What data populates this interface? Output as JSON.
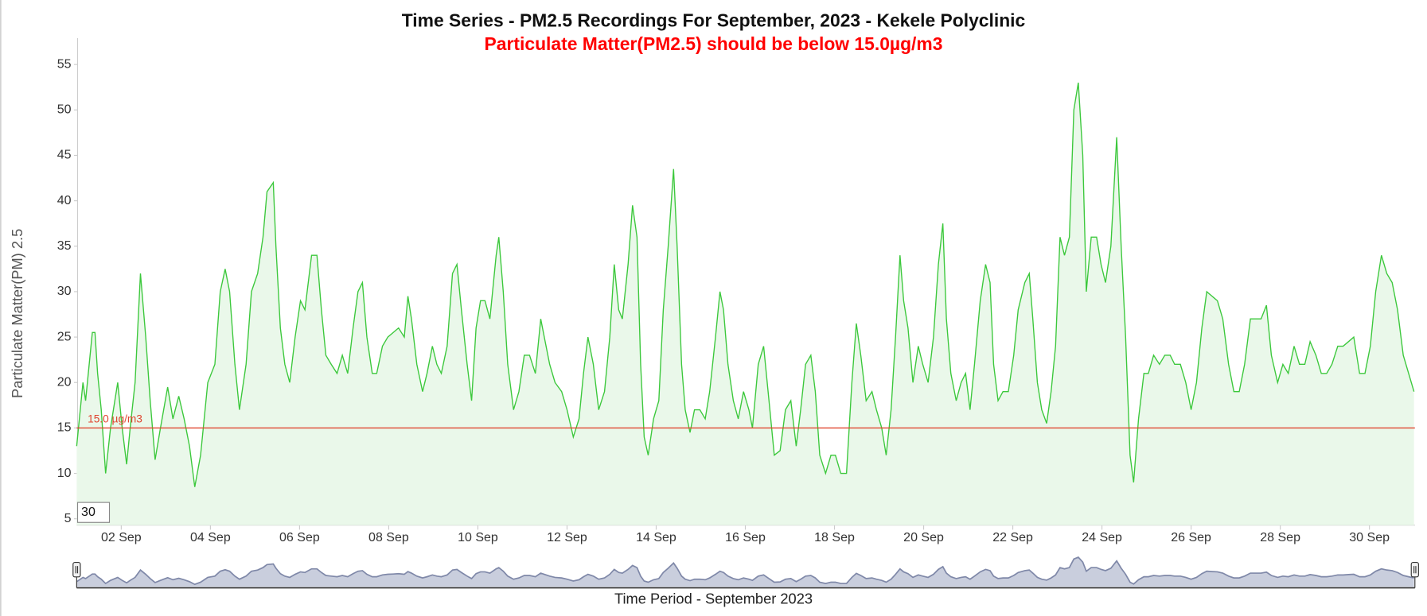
{
  "chart_data": {
    "type": "area",
    "title": "Time Series - PM2.5 Recordings For September, 2023 - Kekele Polyclinic",
    "subtitle": "Particulate Matter(PM2.5) should be below 15.0µg/m3",
    "y_label": "Particulate Matter(PM) 2.5",
    "x_label": "Time Period - September 2023",
    "range_input": "30",
    "color": "#3cc83c",
    "fill_color": "#eaf8ea",
    "navigator_color": "#7f88a8",
    "navigator_fill": "#c9cedd",
    "threshold": {
      "value": 15,
      "label": "15.0 µg/m3",
      "color": "#e0452f"
    },
    "xlim": [
      1,
      31
    ],
    "ylim": [
      4.3,
      57.9
    ],
    "yticks": [
      5,
      10,
      15,
      20,
      25,
      30,
      35,
      40,
      45,
      50,
      55
    ],
    "xticks": [
      {
        "value": 2,
        "label": "02 Sep"
      },
      {
        "value": 4,
        "label": "04 Sep"
      },
      {
        "value": 6,
        "label": "06 Sep"
      },
      {
        "value": 8,
        "label": "08 Sep"
      },
      {
        "value": 10,
        "label": "10 Sep"
      },
      {
        "value": 12,
        "label": "12 Sep"
      },
      {
        "value": 14,
        "label": "14 Sep"
      },
      {
        "value": 16,
        "label": "16 Sep"
      },
      {
        "value": 18,
        "label": "18 Sep"
      },
      {
        "value": 20,
        "label": "20 Sep"
      },
      {
        "value": 22,
        "label": "22 Sep"
      },
      {
        "value": 24,
        "label": "24 Sep"
      },
      {
        "value": 26,
        "label": "26 Sep"
      },
      {
        "value": 28,
        "label": "28 Sep"
      },
      {
        "value": 30,
        "label": "30 Sep"
      }
    ],
    "x": [
      1.0,
      1.14,
      1.2,
      1.35,
      1.41,
      1.47,
      1.55,
      1.65,
      1.76,
      1.92,
      2.02,
      2.12,
      2.2,
      2.31,
      2.43,
      2.55,
      2.65,
      2.76,
      2.88,
      3.04,
      3.16,
      3.29,
      3.41,
      3.53,
      3.65,
      3.78,
      3.94,
      4.1,
      4.22,
      4.33,
      4.43,
      4.55,
      4.65,
      4.8,
      4.92,
      5.06,
      5.18,
      5.27,
      5.41,
      5.47,
      5.57,
      5.67,
      5.78,
      5.9,
      6.02,
      6.12,
      6.27,
      6.39,
      6.49,
      6.59,
      6.71,
      6.84,
      6.96,
      7.08,
      7.2,
      7.31,
      7.41,
      7.51,
      7.63,
      7.73,
      7.86,
      7.98,
      8.1,
      8.22,
      8.35,
      8.43,
      8.51,
      8.63,
      8.76,
      8.86,
      8.98,
      9.08,
      9.18,
      9.31,
      9.43,
      9.53,
      9.63,
      9.76,
      9.86,
      9.96,
      10.06,
      10.16,
      10.27,
      10.41,
      10.47,
      10.57,
      10.67,
      10.8,
      10.92,
      11.04,
      11.16,
      11.29,
      11.41,
      11.49,
      11.61,
      11.73,
      11.88,
      12.0,
      12.14,
      12.27,
      12.37,
      12.47,
      12.59,
      12.71,
      12.84,
      12.96,
      13.06,
      13.16,
      13.24,
      13.37,
      13.47,
      13.57,
      13.65,
      13.73,
      13.82,
      13.94,
      14.06,
      14.16,
      14.27,
      14.39,
      14.47,
      14.57,
      14.65,
      14.76,
      14.86,
      14.98,
      15.1,
      15.2,
      15.33,
      15.43,
      15.51,
      15.61,
      15.73,
      15.84,
      15.96,
      16.08,
      16.16,
      16.29,
      16.41,
      16.53,
      16.65,
      16.78,
      16.9,
      17.02,
      17.14,
      17.24,
      17.35,
      17.47,
      17.57,
      17.67,
      17.8,
      17.92,
      18.02,
      18.14,
      18.27,
      18.39,
      18.49,
      18.59,
      18.71,
      18.84,
      18.94,
      19.06,
      19.16,
      19.27,
      19.37,
      19.47,
      19.55,
      19.65,
      19.76,
      19.88,
      19.98,
      20.1,
      20.22,
      20.33,
      20.43,
      20.51,
      20.61,
      20.73,
      20.84,
      20.94,
      21.04,
      21.14,
      21.27,
      21.39,
      21.49,
      21.57,
      21.67,
      21.78,
      21.9,
      22.02,
      22.12,
      22.27,
      22.37,
      22.45,
      22.55,
      22.65,
      22.76,
      22.86,
      22.96,
      23.06,
      23.16,
      23.27,
      23.37,
      23.47,
      23.57,
      23.65,
      23.76,
      23.88,
      23.98,
      24.08,
      24.2,
      24.33,
      24.43,
      24.53,
      24.63,
      24.71,
      24.82,
      24.94,
      25.04,
      25.16,
      25.29,
      25.41,
      25.53,
      25.63,
      25.76,
      25.88,
      26.0,
      26.12,
      26.24,
      26.35,
      26.47,
      26.59,
      26.71,
      26.84,
      26.96,
      27.08,
      27.2,
      27.33,
      27.45,
      27.57,
      27.69,
      27.8,
      27.94,
      28.06,
      28.18,
      28.31,
      28.43,
      28.55,
      28.67,
      28.8,
      28.92,
      29.04,
      29.16,
      29.29,
      29.41,
      29.53,
      29.65,
      29.78,
      29.9,
      30.02,
      30.14,
      30.27,
      30.39,
      30.51,
      30.63,
      30.76,
      30.88,
      31.0
    ],
    "values": [
      13,
      20,
      18,
      25.5,
      25.5,
      21,
      17,
      10,
      15,
      20,
      15,
      11,
      15,
      20,
      32,
      25,
      18,
      11.5,
      15,
      19.5,
      16,
      18.5,
      16,
      13,
      8.5,
      12,
      20,
      22,
      30,
      32.5,
      30,
      22,
      17,
      22,
      30,
      32,
      36,
      41,
      42,
      35,
      26,
      22,
      20,
      25,
      29,
      28,
      34,
      34,
      28,
      23,
      22,
      21,
      23,
      21,
      26,
      30,
      31,
      25,
      21,
      21,
      24,
      25,
      25.5,
      26,
      25,
      29.5,
      27,
      22,
      19,
      21,
      24,
      22,
      21,
      24,
      32,
      33,
      28,
      22,
      18,
      26,
      29,
      29,
      27,
      34,
      36,
      30,
      22,
      17,
      19,
      23,
      23,
      21,
      27,
      25,
      22,
      20,
      19,
      17,
      14,
      16,
      21,
      25,
      22,
      17,
      19,
      25,
      33,
      28,
      27,
      33,
      39.5,
      36,
      22,
      14,
      12,
      16,
      18,
      28,
      35,
      43.5,
      35,
      22,
      17,
      14.5,
      17,
      17,
      16,
      19,
      25,
      30,
      28,
      22,
      18,
      16,
      19,
      17,
      15,
      22,
      24,
      18,
      12,
      12.5,
      17,
      18,
      13,
      17,
      22,
      23,
      19,
      12,
      10,
      12,
      12,
      10,
      10,
      20,
      26.5,
      23,
      18,
      19,
      17,
      15,
      12,
      17,
      25,
      34,
      29,
      26,
      20,
      24,
      22,
      20,
      25,
      33,
      37.5,
      27,
      21,
      18,
      20,
      21,
      17,
      22,
      29,
      33,
      31,
      22,
      18,
      19,
      19,
      23,
      28,
      31,
      32,
      27,
      20,
      17,
      15.5,
      19,
      24,
      36,
      34,
      36,
      50,
      53,
      45,
      30,
      36,
      36,
      33,
      31,
      35,
      47,
      35,
      25,
      12,
      9,
      16,
      21,
      21,
      23,
      22,
      23,
      23,
      22,
      22,
      20,
      17,
      20,
      26,
      30,
      29.5,
      29,
      27,
      22,
      19,
      19,
      22,
      27,
      27,
      27,
      28.5,
      23,
      20,
      22,
      21,
      24,
      22,
      22,
      24.5,
      23,
      21,
      21,
      22,
      24,
      24,
      24.5,
      25,
      21,
      21,
      24,
      30,
      34,
      32,
      31,
      28,
      23,
      21,
      19
    ]
  }
}
